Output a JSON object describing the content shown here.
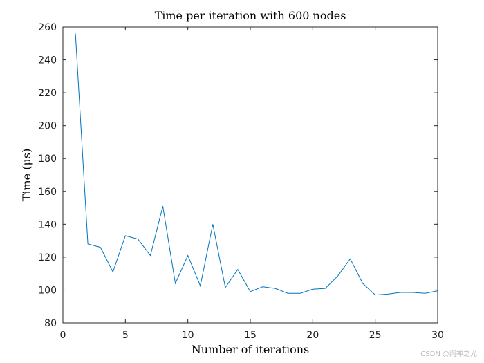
{
  "chart_data": {
    "type": "line",
    "title": "Time per iteration with 600 nodes",
    "xlabel": "Number of iterations",
    "ylabel": "Time (μs)",
    "xlim": [
      0,
      30
    ],
    "ylim": [
      80,
      260
    ],
    "xticks": [
      0,
      5,
      10,
      15,
      20,
      25,
      30
    ],
    "yticks": [
      80,
      100,
      120,
      140,
      160,
      180,
      200,
      220,
      240,
      260
    ],
    "grid": false,
    "series": [
      {
        "color": "#0072BD",
        "x": [
          1,
          2,
          3,
          4,
          5,
          6,
          7,
          8,
          9,
          10,
          11,
          12,
          13,
          14,
          15,
          16,
          17,
          18,
          19,
          20,
          21,
          22,
          23,
          24,
          25,
          26,
          27,
          28,
          29,
          30
        ],
        "y": [
          256,
          128,
          126,
          111,
          133,
          131,
          121,
          151,
          104,
          121,
          102.5,
          140,
          101.5,
          112.5,
          99,
          102,
          101,
          98,
          98,
          100.5,
          101,
          108.5,
          119,
          104,
          97,
          97.5,
          98.5,
          98.5,
          98,
          99.5
        ]
      }
    ]
  },
  "watermark": "CSDN @阎神之光"
}
